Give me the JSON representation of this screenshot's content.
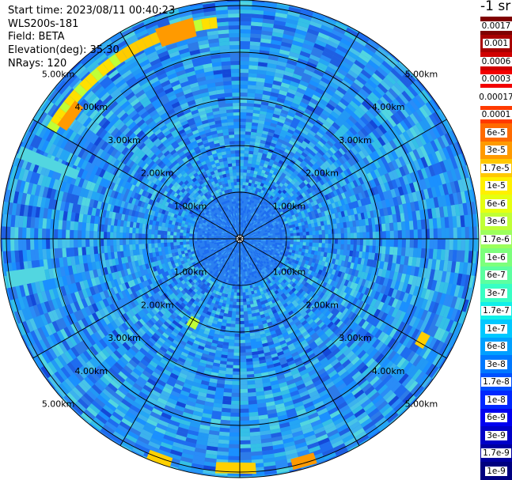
{
  "info": {
    "start_time": "Start time: 2023/08/11 00:40:23",
    "instrument": "WLS200s-181",
    "field": "Field: BETA",
    "elevation": "Elevation(deg): 35.30",
    "nrays": "NRays: 120"
  },
  "colorbar": {
    "title": "-1 sr",
    "labels": [
      "0.0017",
      "0.001",
      "0.0006",
      "0.0003",
      "0.00017",
      "0.0001",
      "6e-5",
      "3e-5",
      "1.7e-5",
      "1e-5",
      "6e-6",
      "3e-6",
      "1.7e-6",
      "1e-6",
      "6e-7",
      "3e-7",
      "1.7e-7",
      "1e-7",
      "6e-8",
      "3e-8",
      "1.7e-8",
      "1e-8",
      "6e-9",
      "3e-9",
      "1.7e-9",
      "1e-9"
    ],
    "colors": [
      "#7f0000",
      "#a80000",
      "#d00000",
      "#f20000",
      "#ffffff",
      "#ff3a00",
      "#ff6a00",
      "#ff9a00",
      "#ffc800",
      "#fff000",
      "#e6ff10",
      "#c0ff36",
      "#9cff5c",
      "#7cff7c",
      "#5cffa0",
      "#38ffc4",
      "#10f0e8",
      "#00c8ff",
      "#00a0ff",
      "#0078ff",
      "#0050ff",
      "#0028ff",
      "#0000f0",
      "#0000c8",
      "#0000a0",
      "#000080"
    ]
  },
  "map": {
    "range_labels": [
      "1.00km",
      "2.00km",
      "3.00km",
      "4.00km",
      "5.00km"
    ]
  }
}
